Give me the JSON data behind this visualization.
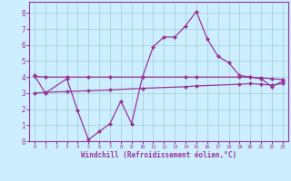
{
  "line1_x": [
    0,
    1,
    3,
    4,
    5,
    6,
    7,
    8,
    9,
    10,
    11,
    12,
    13,
    14,
    15,
    16,
    17,
    18,
    19,
    20,
    21,
    22,
    23
  ],
  "line1_y": [
    4.1,
    3.0,
    3.9,
    1.9,
    0.1,
    0.6,
    1.1,
    2.5,
    1.1,
    4.0,
    5.9,
    6.5,
    6.5,
    7.2,
    8.1,
    6.4,
    5.3,
    4.9,
    4.1,
    4.0,
    3.9,
    3.4,
    3.75
  ],
  "line2_x": [
    0,
    1,
    3,
    5,
    7,
    10,
    14,
    15,
    19,
    20,
    21,
    22,
    23
  ],
  "line2_y": [
    4.05,
    4.0,
    4.0,
    4.0,
    4.0,
    4.0,
    4.0,
    4.0,
    4.0,
    4.0,
    3.95,
    3.9,
    3.85
  ],
  "line3_x": [
    0,
    1,
    3,
    5,
    7,
    10,
    14,
    15,
    19,
    20,
    21,
    22,
    23
  ],
  "line3_y": [
    3.0,
    3.05,
    3.1,
    3.15,
    3.2,
    3.3,
    3.4,
    3.45,
    3.55,
    3.6,
    3.55,
    3.5,
    3.6
  ],
  "color": "#993399",
  "bg_color": "#cceeff",
  "xlabel": "Windchill (Refroidissement éolien,°C)",
  "xlim": [
    -0.5,
    23.5
  ],
  "ylim": [
    0,
    8.7
  ],
  "xticks": [
    0,
    1,
    2,
    3,
    4,
    5,
    6,
    7,
    8,
    9,
    10,
    11,
    12,
    13,
    14,
    15,
    16,
    17,
    18,
    19,
    20,
    21,
    22,
    23
  ],
  "yticks": [
    0,
    1,
    2,
    3,
    4,
    5,
    6,
    7,
    8
  ],
  "grid_color": "#a0cece",
  "marker": "D",
  "markersize": 2.5,
  "linewidth": 0.9
}
